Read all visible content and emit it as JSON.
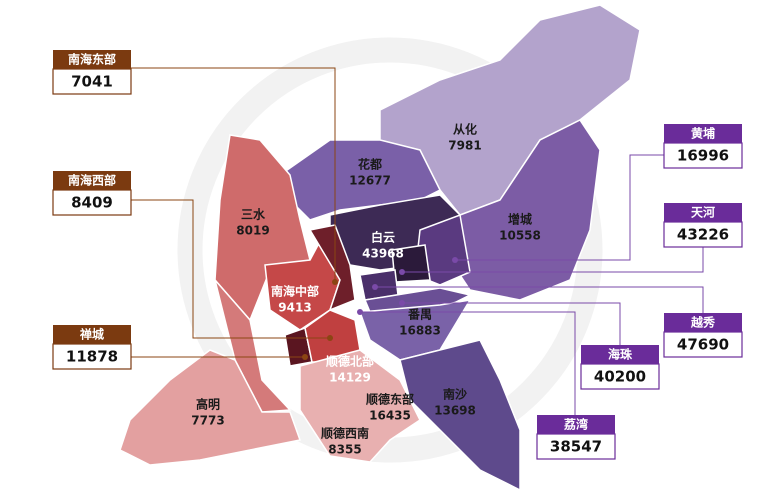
{
  "map": {
    "regions": [
      {
        "name": "从化",
        "value": 7981
      },
      {
        "name": "花都",
        "value": 12677
      },
      {
        "name": "三水",
        "value": 8019
      },
      {
        "name": "白云",
        "value": 43968
      },
      {
        "name": "增城",
        "value": 10558
      },
      {
        "name": "南海中部",
        "value": 9413
      },
      {
        "name": "番禺",
        "value": 16883
      },
      {
        "name": "顺德北部",
        "value": 14129
      },
      {
        "name": "高明",
        "value": 7773
      },
      {
        "name": "顺德东部",
        "value": 16435
      },
      {
        "name": "南沙",
        "value": 13698
      },
      {
        "name": "顺德西南",
        "value": 8355
      }
    ],
    "callouts": [
      {
        "name": "南海东部",
        "value": 7041
      },
      {
        "name": "南海西部",
        "value": 8409
      },
      {
        "name": "禅城",
        "value": 11878
      },
      {
        "name": "黄埔",
        "value": 16996
      },
      {
        "name": "天河",
        "value": 43226
      },
      {
        "name": "越秀",
        "value": 47690
      },
      {
        "name": "海珠",
        "value": 40200
      },
      {
        "name": "荔湾",
        "value": 38547
      }
    ]
  }
}
